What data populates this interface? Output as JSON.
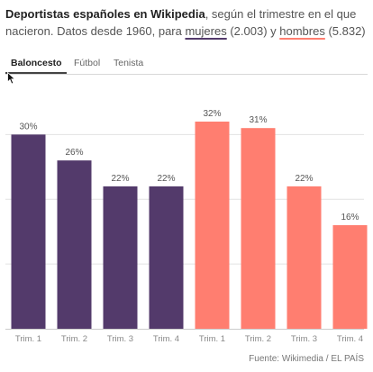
{
  "header": {
    "title_bold": "Deportistas españoles en Wikipedia",
    "title_rest": ", según el trimestre en el que nacieron. Datos desde 1960, para ",
    "women_label": "mujeres",
    "women_count": " (2.003) y ",
    "men_label": "hombres",
    "men_count": " (5.832)"
  },
  "tabs": [
    {
      "label": "Baloncesto",
      "active": true
    },
    {
      "label": "Fútbol",
      "active": false
    },
    {
      "label": "Tenista",
      "active": false
    }
  ],
  "colors": {
    "women": "#533a6b",
    "men": "#ff7e70",
    "grid": "#e2e2e2"
  },
  "chart_data": {
    "type": "bar",
    "categories": [
      "Trim. 1",
      "Trim. 2",
      "Trim. 3",
      "Trim. 4",
      "Trim. 1",
      "Trim. 2",
      "Trim. 3",
      "Trim. 4"
    ],
    "series": [
      {
        "values": [
          30,
          26,
          22,
          22,
          null,
          null,
          null,
          null
        ]
      },
      {
        "values": [
          null,
          null,
          null,
          null,
          32,
          31,
          22,
          16
        ]
      }
    ],
    "data_labels": [
      "30%",
      "26%",
      "22%",
      "22%",
      "32%",
      "31%",
      "22%",
      "16%"
    ],
    "ylim": [
      0,
      32
    ]
  },
  "footer": {
    "source": "Fuente: Wikimedia / EL PAÍS"
  }
}
